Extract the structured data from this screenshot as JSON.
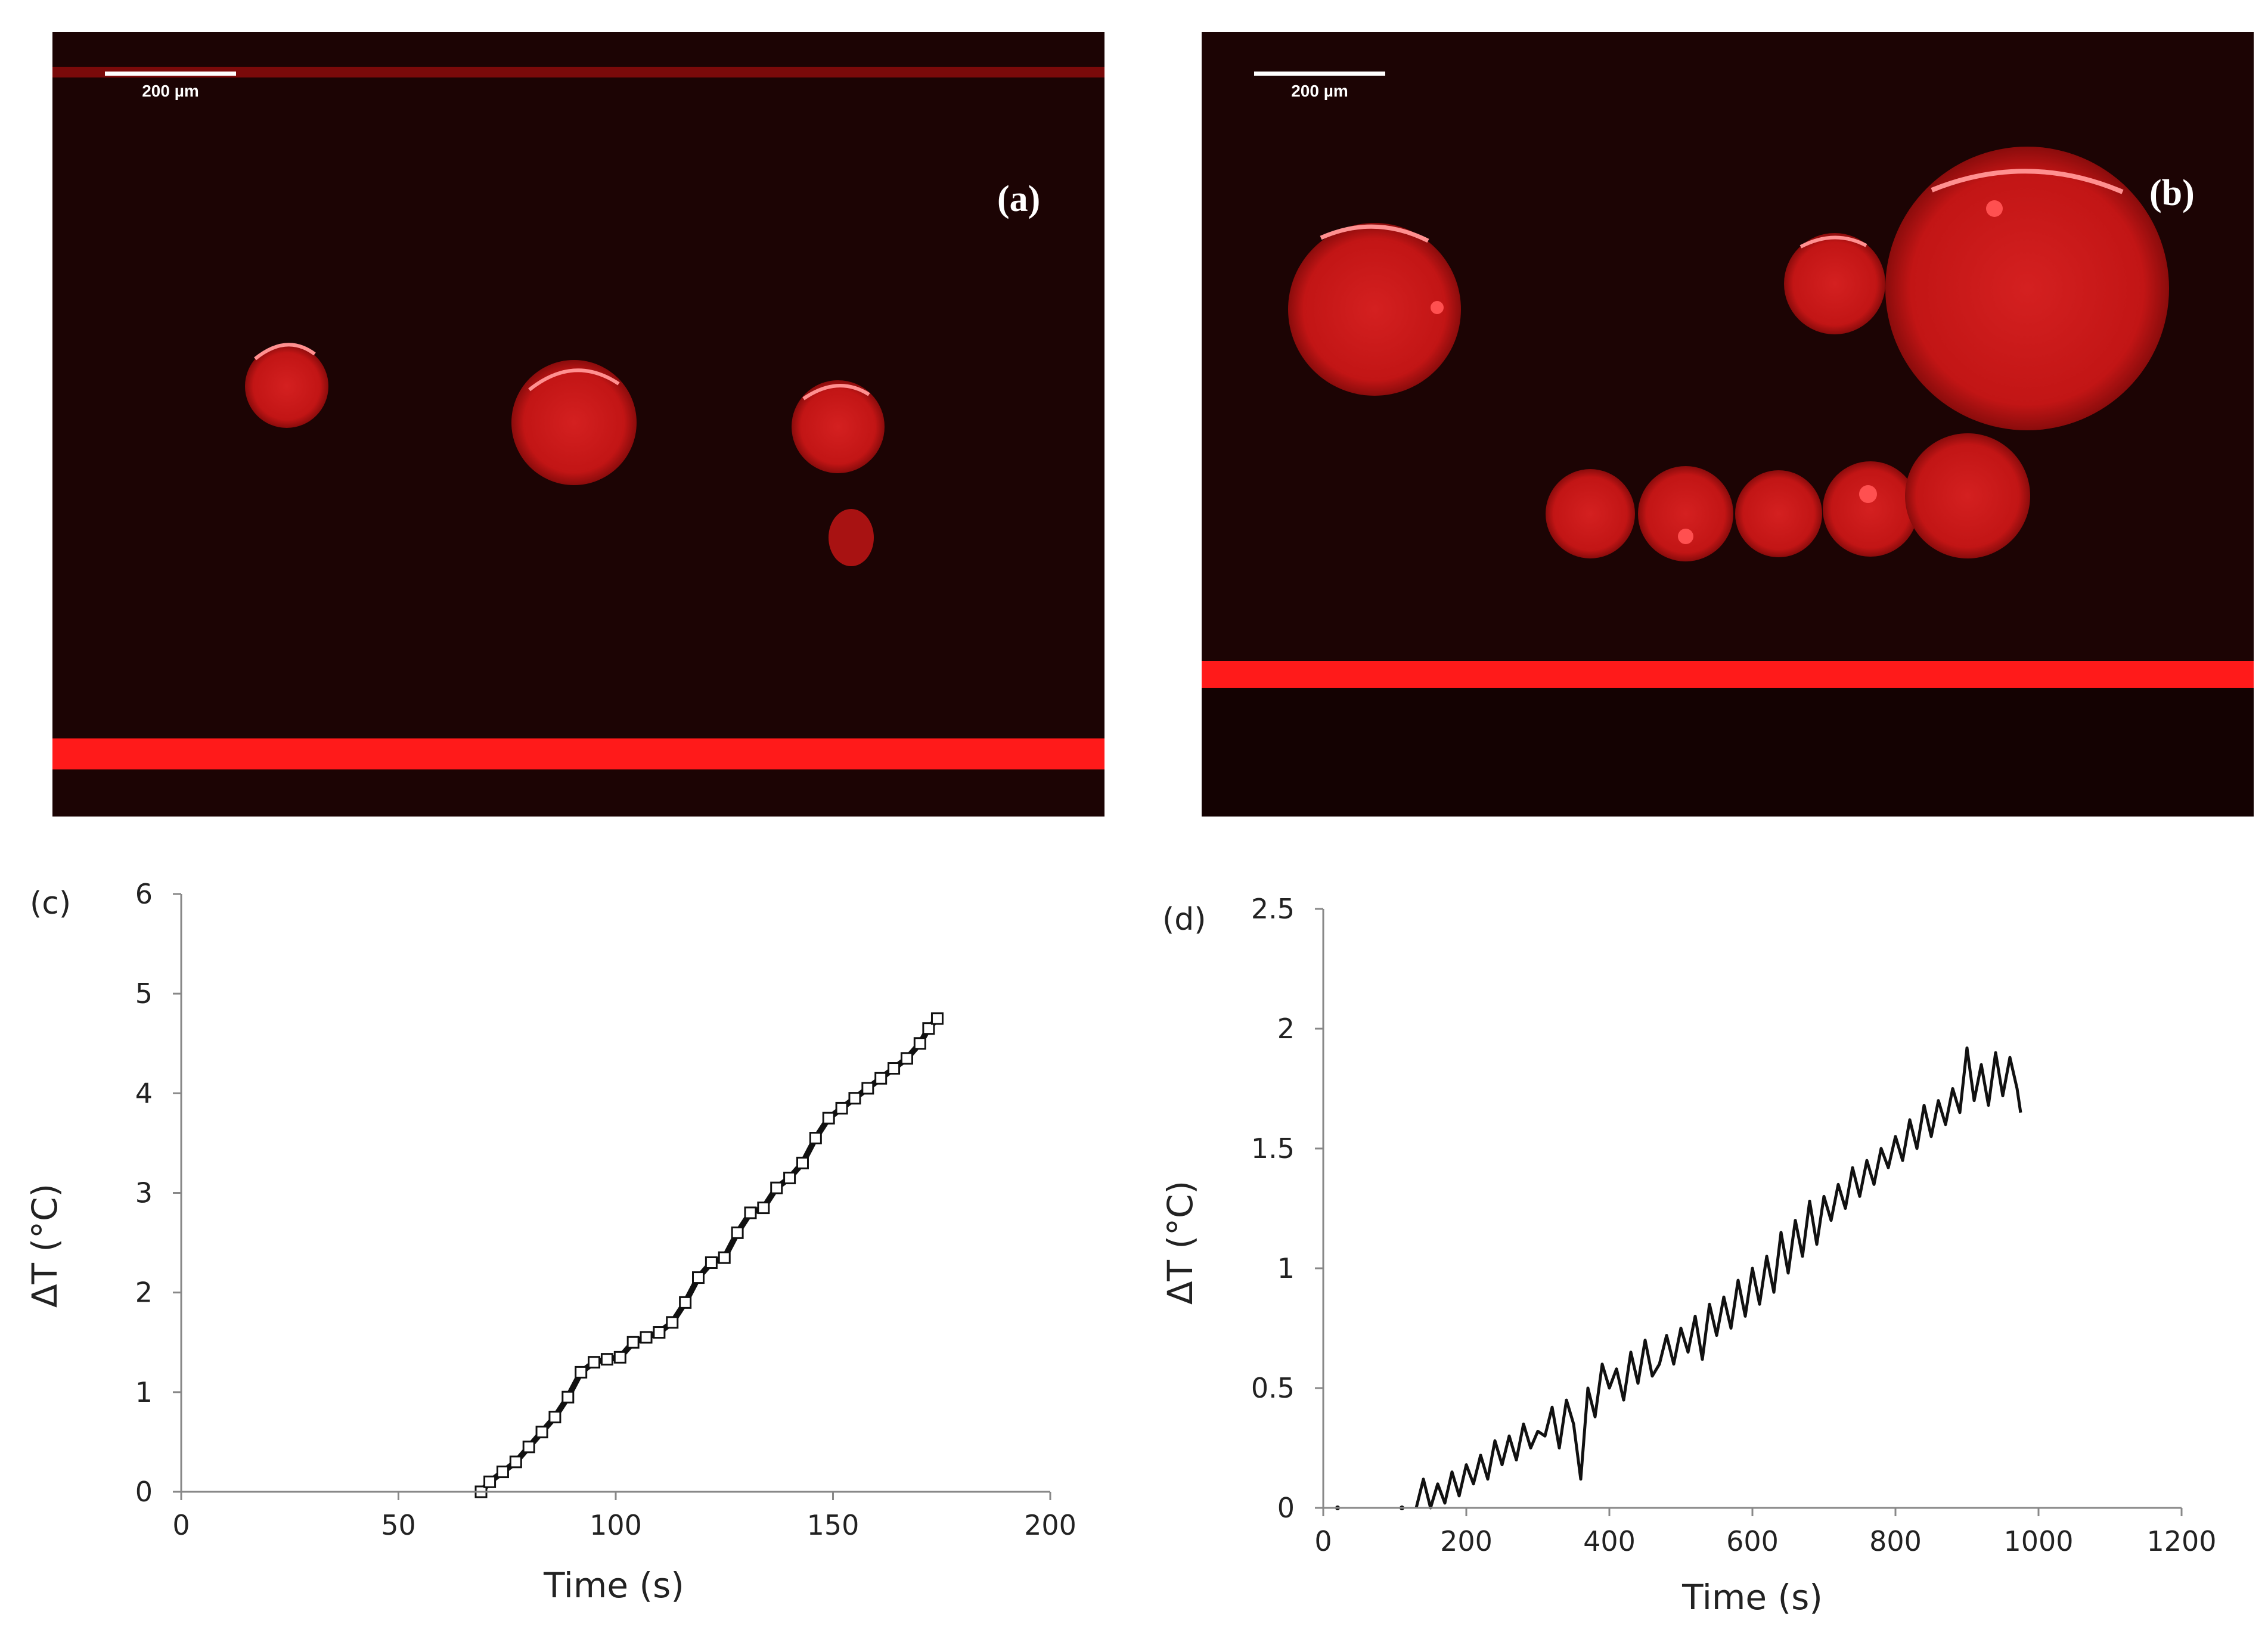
{
  "images": [
    {
      "panel_label": "(a)",
      "scale_bar_label": "200 µm",
      "marker_color": "#ff1a1a",
      "background_color": "#1c0404"
    },
    {
      "panel_label": "(b)",
      "scale_bar_label": "200 µm",
      "marker_color": "#ff1a1a",
      "background_color": "#1c0404"
    }
  ],
  "chart_data": [
    {
      "panel_label": "(c)",
      "type": "scatter",
      "marker": "hollow-square",
      "xlabel": "Time (s)",
      "ylabel": "ΔT (°C)",
      "xlim": [
        0,
        200
      ],
      "ylim": [
        0,
        6
      ],
      "xticks": [
        0,
        50,
        100,
        150,
        200
      ],
      "yticks": [
        0,
        1,
        2,
        3,
        4,
        5,
        6
      ],
      "grid": false,
      "series": [
        {
          "x": [
            69,
            71,
            74,
            77,
            80,
            83,
            86,
            89,
            92,
            95,
            98,
            101,
            104,
            107,
            110,
            113,
            116,
            119,
            122,
            125,
            128,
            131,
            134,
            137,
            140,
            143,
            146,
            149,
            152,
            155,
            158,
            161,
            164,
            167,
            170,
            172,
            174
          ],
          "y": [
            0.0,
            0.1,
            0.2,
            0.3,
            0.45,
            0.6,
            0.75,
            0.95,
            1.2,
            1.3,
            1.33,
            1.35,
            1.5,
            1.55,
            1.6,
            1.7,
            1.9,
            2.15,
            2.3,
            2.35,
            2.6,
            2.8,
            2.85,
            3.05,
            3.15,
            3.3,
            3.55,
            3.75,
            3.85,
            3.95,
            4.05,
            4.15,
            4.25,
            4.35,
            4.5,
            4.65,
            4.75
          ]
        }
      ]
    },
    {
      "panel_label": "(d)",
      "type": "line",
      "xlabel": "Time (s)",
      "ylabel": "ΔT (°C)",
      "xlim": [
        0,
        1200
      ],
      "ylim": [
        0,
        2.5
      ],
      "xticks": [
        0,
        200,
        400,
        600,
        800,
        1000,
        1200
      ],
      "yticks": [
        0,
        0.5,
        1,
        1.5,
        2,
        2.5
      ],
      "grid": false,
      "series": [
        {
          "x": [
            20,
            110,
            130,
            140,
            150,
            160,
            170,
            180,
            190,
            200,
            210,
            220,
            230,
            240,
            250,
            260,
            270,
            280,
            290,
            300,
            310,
            320,
            330,
            340,
            350,
            360,
            370,
            380,
            390,
            400,
            410,
            420,
            430,
            440,
            450,
            460,
            470,
            480,
            490,
            500,
            510,
            520,
            530,
            540,
            550,
            560,
            570,
            580,
            590,
            600,
            610,
            620,
            630,
            640,
            650,
            660,
            670,
            680,
            690,
            700,
            710,
            720,
            730,
            740,
            750,
            760,
            770,
            780,
            790,
            800,
            810,
            820,
            830,
            840,
            850,
            860,
            870,
            880,
            890,
            900,
            910,
            920,
            930,
            940,
            950,
            960,
            970,
            975
          ],
          "y": [
            0.0,
            0.0,
            0.0,
            0.12,
            0.0,
            0.1,
            0.02,
            0.15,
            0.05,
            0.18,
            0.1,
            0.22,
            0.12,
            0.28,
            0.18,
            0.3,
            0.2,
            0.35,
            0.25,
            0.32,
            0.3,
            0.42,
            0.25,
            0.45,
            0.35,
            0.12,
            0.5,
            0.38,
            0.6,
            0.5,
            0.58,
            0.45,
            0.65,
            0.52,
            0.7,
            0.55,
            0.6,
            0.72,
            0.6,
            0.75,
            0.65,
            0.8,
            0.62,
            0.85,
            0.72,
            0.88,
            0.75,
            0.95,
            0.8,
            1.0,
            0.85,
            1.05,
            0.9,
            1.15,
            0.98,
            1.2,
            1.05,
            1.28,
            1.1,
            1.3,
            1.2,
            1.35,
            1.25,
            1.42,
            1.3,
            1.45,
            1.35,
            1.5,
            1.42,
            1.55,
            1.45,
            1.62,
            1.5,
            1.68,
            1.55,
            1.7,
            1.6,
            1.75,
            1.65,
            1.92,
            1.7,
            1.85,
            1.68,
            1.9,
            1.72,
            1.88,
            1.75,
            1.65
          ]
        }
      ]
    }
  ]
}
